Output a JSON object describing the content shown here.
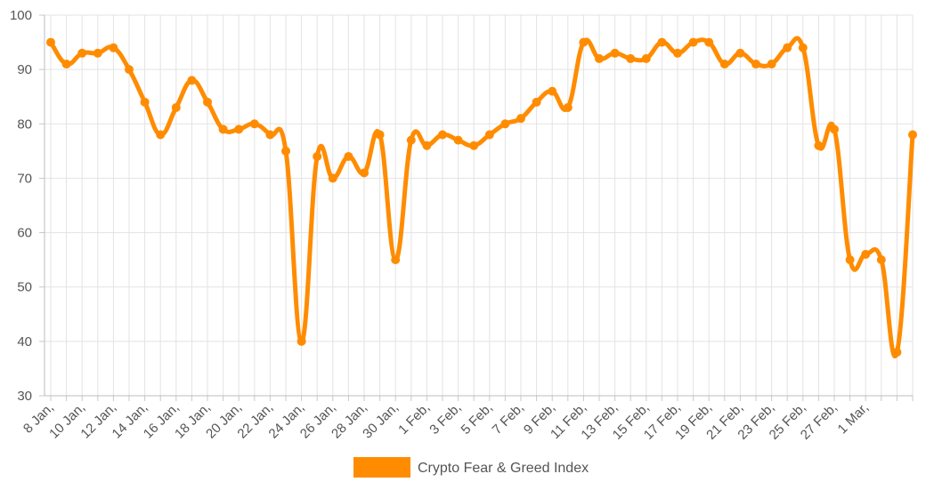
{
  "chart_data": {
    "type": "line",
    "title": "",
    "xlabel": "",
    "ylabel": "",
    "ylim": [
      30,
      100
    ],
    "y_ticks": [
      30,
      40,
      50,
      60,
      70,
      80,
      90,
      100
    ],
    "grid": true,
    "legend_position": "bottom",
    "tick_labels_x": [
      "8 Jan,",
      "10 Jan,",
      "12 Jan,",
      "14 Jan,",
      "16 Jan,",
      "18 Jan,",
      "20 Jan,",
      "22 Jan,",
      "24 Jan,",
      "26 Jan,",
      "28 Jan,",
      "30 Jan,",
      "1 Feb,",
      "3 Feb,",
      "5 Feb,",
      "7 Feb,",
      "9 Feb,",
      "11 Feb,",
      "13 Feb,",
      "15 Feb,",
      "17 Feb,",
      "19 Feb,",
      "21 Feb,",
      "23 Feb,",
      "25 Feb,",
      "27 Feb,",
      "1 Mar,"
    ],
    "series": [
      {
        "name": "Crypto Fear & Greed Index",
        "color": "#ff8c00",
        "values": [
          95,
          91,
          93,
          93,
          94,
          90,
          84,
          78,
          83,
          88,
          84,
          79,
          79,
          80,
          78,
          75,
          40,
          74,
          70,
          74,
          71,
          78,
          55,
          77,
          76,
          78,
          77,
          76,
          78,
          80,
          81,
          84,
          86,
          83,
          95,
          92,
          93,
          92,
          92,
          95,
          93,
          95,
          95,
          91,
          93,
          91,
          91,
          94,
          94,
          76,
          79,
          55,
          56,
          55,
          38,
          78
        ]
      }
    ]
  }
}
